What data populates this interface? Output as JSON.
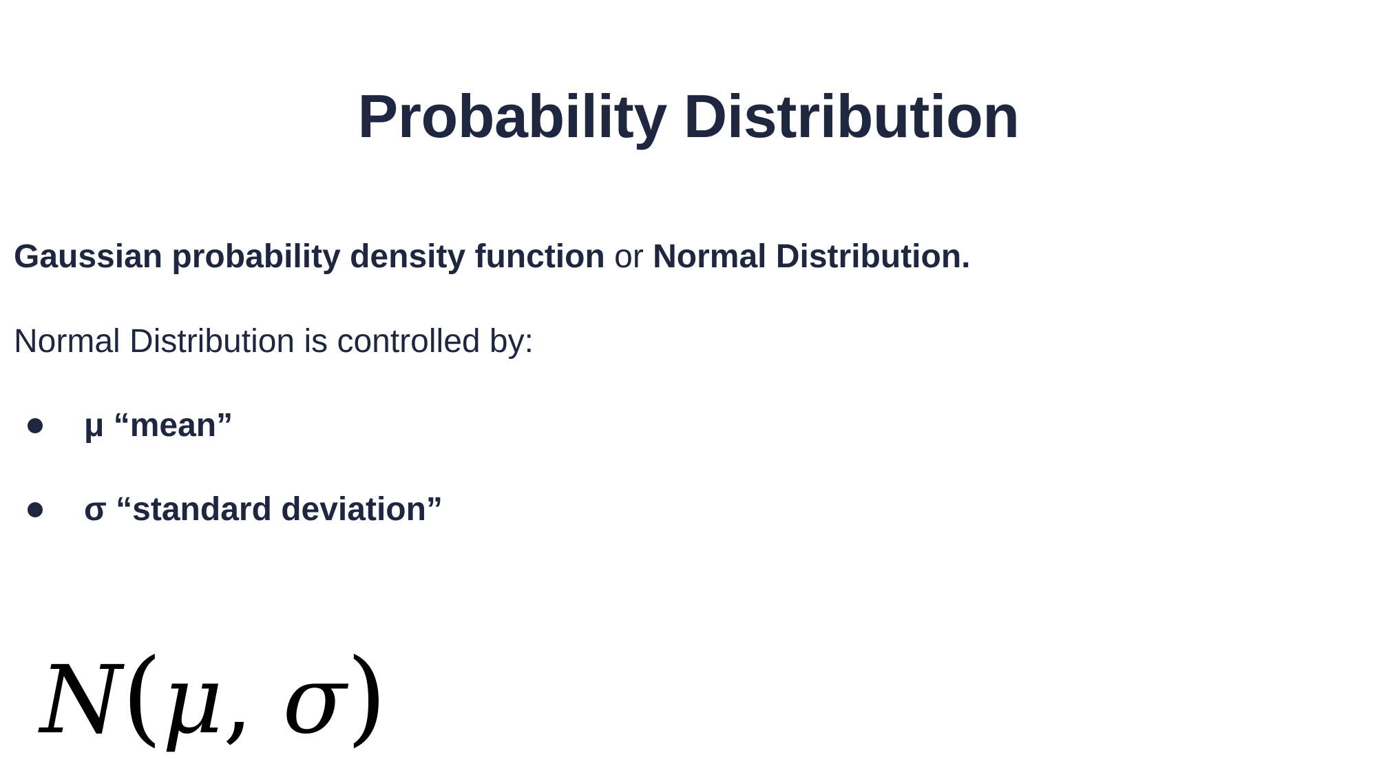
{
  "slide": {
    "title": "Probability Distribution",
    "intro": {
      "part1": "Gaussian probability density function",
      "connector": " or ",
      "part2": "Normal Distribution."
    },
    "controlled_by": "Normal Distribution is controlled by:",
    "bullets": [
      {
        "text": "μ “mean”"
      },
      {
        "text": "σ “standard deviation”"
      }
    ],
    "formula": {
      "name": "N",
      "open": "(",
      "arg1": "μ",
      "comma": ", ",
      "arg2": "σ",
      "close": ")"
    }
  },
  "colors": {
    "text": "#1f2640",
    "formula": "#000000",
    "background": "#ffffff"
  }
}
